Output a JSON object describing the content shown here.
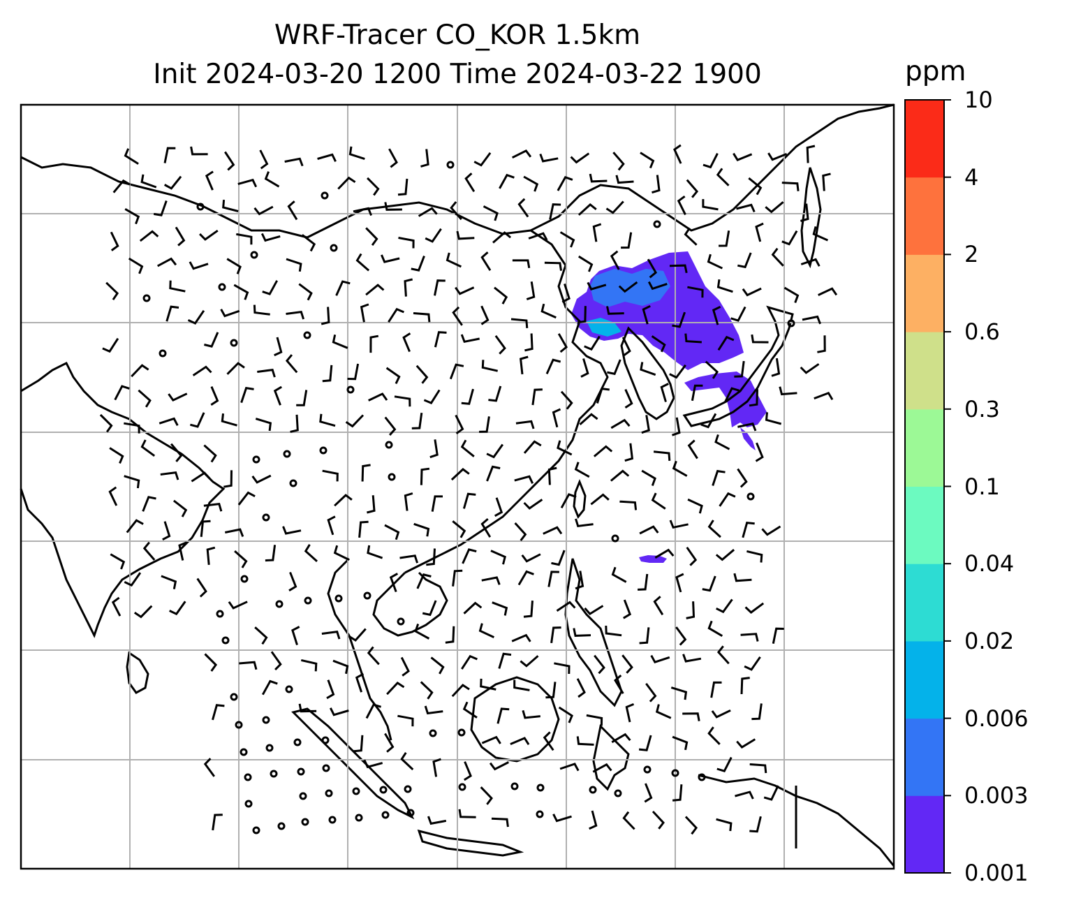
{
  "title": {
    "line1": "WRF-Tracer CO_KOR 1.5km",
    "line2": "Init 2024-03-20 1200 Time 2024-03-22 1900"
  },
  "colorbar": {
    "unit": "ppm",
    "ticks": [
      "0.001",
      "0.003",
      "0.006",
      "0.02",
      "0.04",
      "0.1",
      "0.3",
      "0.6",
      "2",
      "4",
      "10"
    ],
    "colors": [
      "#6228f5",
      "#3375f5",
      "#04b2ea",
      "#2ddcd3",
      "#6cfac0",
      "#9cf996",
      "#cfe08a",
      "#fdb063",
      "#fe723d",
      "#fb2b18"
    ]
  },
  "map": {
    "features": [
      "coastlines",
      "graticule-grid",
      "wind-barbs",
      "calm-circles",
      "tracer-plume"
    ],
    "plume_color": "#6228f5",
    "plume_core_color": "#3375f5"
  }
}
